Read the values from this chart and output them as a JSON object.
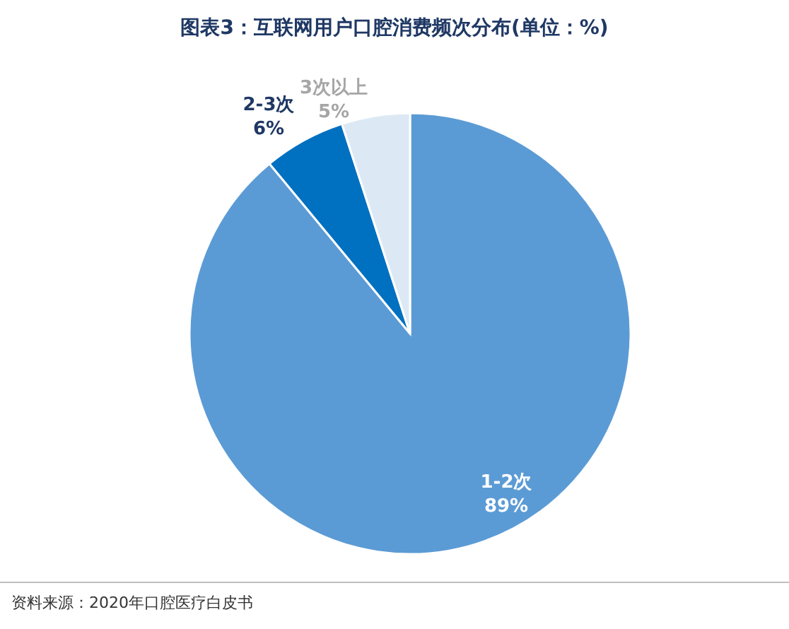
{
  "chart_data": {
    "type": "pie",
    "title": "图表3：互联网用户口腔消费频次分布(单位：%)",
    "categories": [
      "1-2次",
      "2-3次",
      "3次以上"
    ],
    "values": [
      89,
      6,
      5
    ],
    "colors": [
      "#5b9bd5",
      "#0070c0",
      "#dce9f5"
    ],
    "value_labels": [
      "89%",
      "6%",
      "5%"
    ],
    "annotations": [
      "资料来源：2020年口腔医疗白皮书"
    ]
  }
}
